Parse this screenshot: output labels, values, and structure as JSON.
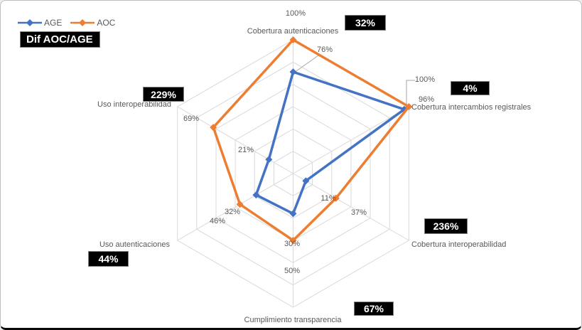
{
  "legend": {
    "items": [
      {
        "label": "AGE",
        "color": "#4472C4"
      },
      {
        "label": "AOC",
        "color": "#ED7D31"
      }
    ]
  },
  "dif_title": "Dif AOC/AGE",
  "chart_data": {
    "type": "radar",
    "categories": [
      "Cobertura autenticaciones",
      "Cobertura intercambios registrales",
      "Cobertura interoperabilidad",
      "Cumplimiento transparencia",
      "Uso autenticaciones",
      "Uso interoperabilidad"
    ],
    "series": [
      {
        "name": "AGE",
        "color": "#4472C4",
        "values": [
          76,
          96,
          11,
          30,
          32,
          21
        ],
        "labels": [
          "76%",
          "96%",
          "11%",
          "30%",
          "32%",
          "21%"
        ]
      },
      {
        "name": "AOC",
        "color": "#ED7D31",
        "values": [
          100,
          100,
          37,
          50,
          46,
          69
        ],
        "labels": [
          "100%",
          "100%",
          "37%",
          "50%",
          "46%",
          "69%"
        ]
      }
    ],
    "dif_aoc_age": {
      "title": "Dif AOC/AGE",
      "values": [
        "32%",
        "4%",
        "236%",
        "67%",
        "44%",
        "229%"
      ]
    },
    "axis": {
      "max": 100,
      "unit": "%",
      "rings": 6,
      "grid_color": "#D9D9D9",
      "leader_color": "#A6A6A6",
      "label_color": "#595959"
    }
  }
}
